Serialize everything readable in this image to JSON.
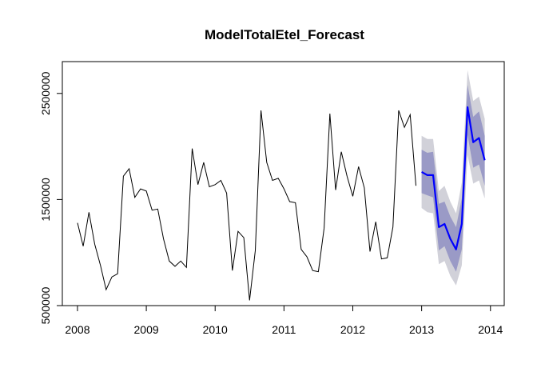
{
  "chart_data": {
    "type": "line",
    "title": "ModelTotalEtel_Forecast",
    "xlabel": "",
    "ylabel": "",
    "xlim": [
      2007.78,
      2014.2
    ],
    "ylim": [
      500000,
      2800000
    ],
    "x_ticks": [
      2008,
      2009,
      2010,
      2011,
      2012,
      2013,
      2014
    ],
    "x_tick_labels": [
      "2008",
      "2009",
      "2010",
      "2011",
      "2012",
      "2013",
      "2014"
    ],
    "y_ticks": [
      500000,
      1500000,
      2500000
    ],
    "y_tick_labels": [
      "500000",
      "1500000",
      "2500000"
    ],
    "grid": false,
    "colors": {
      "history": "#000000",
      "forecast": "#0000ff",
      "band95": "#d1d1d9",
      "band80": "#9a9ac6"
    },
    "history": {
      "start": 2008.0,
      "step": 0.08333333,
      "values": [
        1280000,
        1060000,
        1380000,
        1080000,
        880000,
        650000,
        770000,
        800000,
        1720000,
        1790000,
        1520000,
        1600000,
        1580000,
        1400000,
        1410000,
        1130000,
        920000,
        870000,
        920000,
        860000,
        1980000,
        1640000,
        1850000,
        1620000,
        1640000,
        1680000,
        1560000,
        830000,
        1200000,
        1140000,
        550000,
        1020000,
        2340000,
        1850000,
        1680000,
        1700000,
        1600000,
        1480000,
        1470000,
        1030000,
        960000,
        830000,
        820000,
        1230000,
        2310000,
        1590000,
        1950000,
        1720000,
        1530000,
        1810000,
        1610000,
        1010000,
        1290000,
        940000,
        950000,
        1240000,
        2340000,
        2180000,
        2300000,
        1630000
      ]
    },
    "forecast": {
      "start": 2013.0,
      "step": 0.08333333,
      "mean": [
        1760000,
        1730000,
        1730000,
        1240000,
        1270000,
        1130000,
        1030000,
        1270000,
        2370000,
        2040000,
        2080000,
        1870000
      ],
      "lo80": [
        1560000,
        1540000,
        1520000,
        1020000,
        1060000,
        920000,
        820000,
        1030000,
        2110000,
        1800000,
        1830000,
        1630000
      ],
      "hi80": [
        1970000,
        1940000,
        1950000,
        1460000,
        1480000,
        1340000,
        1240000,
        1510000,
        2580000,
        2280000,
        2330000,
        2100000
      ],
      "lo95": [
        1420000,
        1380000,
        1370000,
        890000,
        920000,
        780000,
        690000,
        880000,
        1920000,
        1650000,
        1680000,
        1510000
      ],
      "hi95": [
        2100000,
        2070000,
        2070000,
        1580000,
        1630000,
        1480000,
        1370000,
        1660000,
        2720000,
        2430000,
        2470000,
        2260000
      ]
    }
  }
}
